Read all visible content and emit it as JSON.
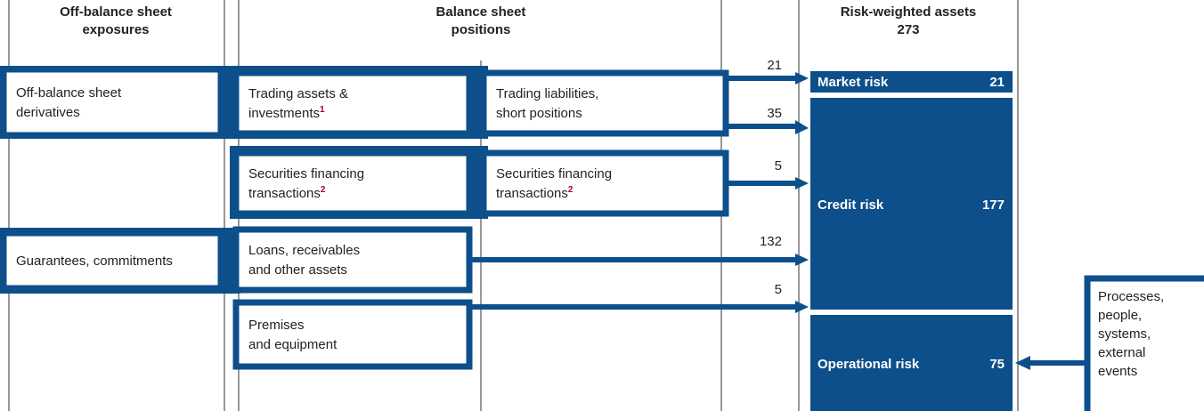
{
  "headers": {
    "off_balance": [
      "Off-balance sheet",
      "exposures"
    ],
    "balance": [
      "Balance sheet",
      "positions"
    ],
    "rwa": "Risk-weighted assets",
    "rwa_total": 273
  },
  "boxes": [
    {
      "lines": [
        "Off-balance sheet",
        "derivatives"
      ]
    },
    {
      "lines": [
        "Trading assets &",
        "investments"
      ],
      "note": "1"
    },
    {
      "lines": [
        "Trading liabilities,",
        "short positions"
      ]
    },
    {
      "lines": [
        "Securities financing",
        "transactions"
      ],
      "note": "2"
    },
    {
      "lines": [
        "Securities financing",
        "transactions"
      ],
      "note": "2"
    },
    {
      "lines": [
        "Guarantees, commitments"
      ]
    },
    {
      "lines": [
        "Loans, receivables",
        "and other assets"
      ]
    },
    {
      "lines": [
        "Premises",
        "and equipment"
      ]
    }
  ],
  "flows": [
    21,
    35,
    5,
    132,
    5
  ],
  "risks": [
    {
      "name": "Market risk",
      "value": 21
    },
    {
      "name": "Credit risk",
      "value": 177
    },
    {
      "name": "Operational risk",
      "value": 75
    }
  ],
  "sources": [
    "Processes,",
    "people,",
    "systems,",
    "external",
    "events"
  ]
}
